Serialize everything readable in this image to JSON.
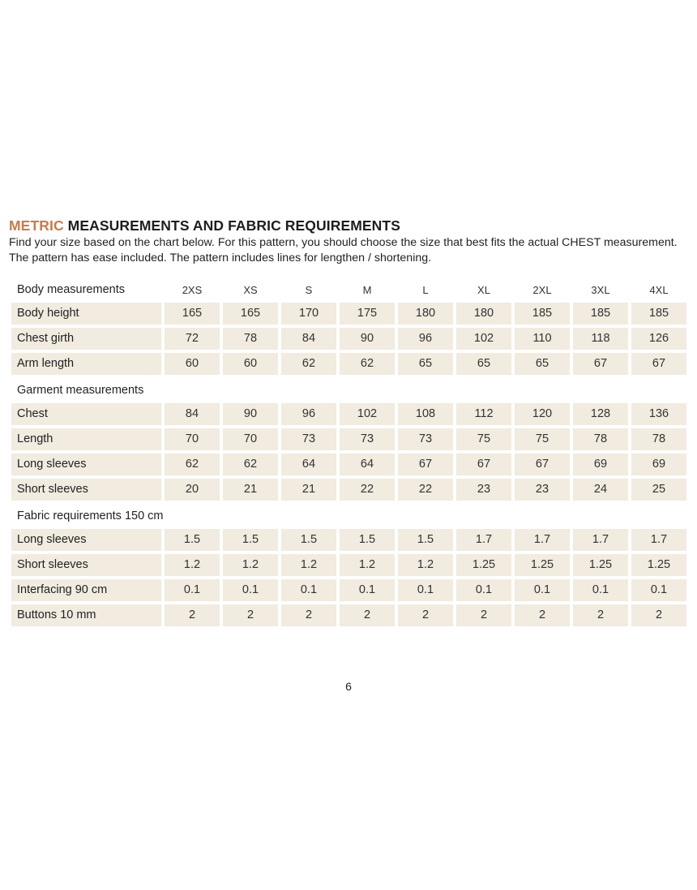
{
  "title": {
    "accent": "METRIC",
    "rest": " MEASUREMENTS AND FABRIC REQUIREMENTS"
  },
  "intro": "Find your size based on the chart below. For this pattern, you should choose the size that best fits the actual CHEST measurement. The pattern has ease included. The pattern includes lines for lengthen / shortening.",
  "sizes": [
    "2XS",
    "XS",
    "S",
    "M",
    "L",
    "XL",
    "2XL",
    "3XL",
    "4XL"
  ],
  "sections": [
    {
      "heading": "Body measurements",
      "show_sizes": true,
      "rows": [
        {
          "label": "Body height",
          "values": [
            "165",
            "165",
            "170",
            "175",
            "180",
            "180",
            "185",
            "185",
            "185"
          ]
        },
        {
          "label": "Chest girth",
          "values": [
            "72",
            "78",
            "84",
            "90",
            "96",
            "102",
            "110",
            "118",
            "126"
          ]
        },
        {
          "label": "Arm length",
          "values": [
            "60",
            "60",
            "62",
            "62",
            "65",
            "65",
            "65",
            "67",
            "67"
          ]
        }
      ]
    },
    {
      "heading": "Garment measurements",
      "show_sizes": false,
      "rows": [
        {
          "label": "Chest",
          "values": [
            "84",
            "90",
            "96",
            "102",
            "108",
            "112",
            "120",
            "128",
            "136"
          ]
        },
        {
          "label": "Length",
          "values": [
            "70",
            "70",
            "73",
            "73",
            "73",
            "75",
            "75",
            "78",
            "78"
          ]
        },
        {
          "label": "Long sleeves",
          "values": [
            "62",
            "62",
            "64",
            "64",
            "67",
            "67",
            "67",
            "69",
            "69"
          ]
        },
        {
          "label": "Short sleeves",
          "values": [
            "20",
            "21",
            "21",
            "22",
            "22",
            "23",
            "23",
            "24",
            "25"
          ]
        }
      ]
    },
    {
      "heading": "Fabric requirements 150 cm",
      "show_sizes": false,
      "rows": [
        {
          "label": "Long sleeves",
          "values": [
            "1.5",
            "1.5",
            "1.5",
            "1.5",
            "1.5",
            "1.7",
            "1.7",
            "1.7",
            "1.7"
          ]
        },
        {
          "label": "Short sleeves",
          "values": [
            "1.2",
            "1.2",
            "1.2",
            "1.2",
            "1.2",
            "1.25",
            "1.25",
            "1.25",
            "1.25"
          ]
        },
        {
          "label": "Interfacing 90 cm",
          "values": [
            "0.1",
            "0.1",
            "0.1",
            "0.1",
            "0.1",
            "0.1",
            "0.1",
            "0.1",
            "0.1"
          ]
        },
        {
          "label": "Buttons 10 mm",
          "values": [
            "2",
            "2",
            "2",
            "2",
            "2",
            "2",
            "2",
            "2",
            "2"
          ]
        }
      ]
    }
  ],
  "page_number": "6",
  "colors": {
    "accent": "#c97a4c",
    "cell_bg": "#f1ebe0"
  }
}
